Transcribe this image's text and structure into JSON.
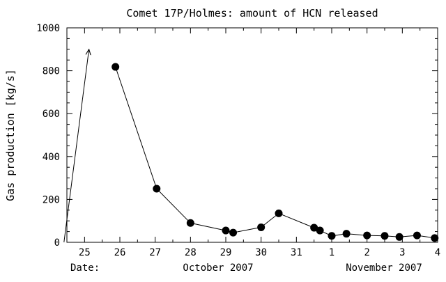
{
  "chart_data": {
    "type": "line",
    "title": "Comet 17P/Holmes: amount of HCN released",
    "ylabel": "Gas production [kg/s]",
    "xlabel": "",
    "ylim": [
      0,
      1000
    ],
    "xlim": [
      "2007-10-24T12:00",
      "2007-11-04T00:00"
    ],
    "grid": false,
    "y_ticks": [
      0,
      200,
      400,
      600,
      800,
      1000
    ],
    "x_ticks": [
      {
        "label": "25",
        "date": "2007-10-25"
      },
      {
        "label": "26",
        "date": "2007-10-26"
      },
      {
        "label": "27",
        "date": "2007-10-27"
      },
      {
        "label": "28",
        "date": "2007-10-28"
      },
      {
        "label": "29",
        "date": "2007-10-29"
      },
      {
        "label": "30",
        "date": "2007-10-30"
      },
      {
        "label": "31",
        "date": "2007-10-31"
      },
      {
        "label": "1",
        "date": "2007-11-01"
      },
      {
        "label": "2",
        "date": "2007-11-02"
      },
      {
        "label": "3",
        "date": "2007-11-03"
      },
      {
        "label": "4",
        "date": "2007-11-04"
      }
    ],
    "date_label": "Date:",
    "month_labels": [
      {
        "text": "October 2007"
      },
      {
        "text": "November 2007"
      }
    ],
    "outburst_arrow": {
      "from": {
        "x": "2007-10-24T10:00",
        "y": 0
      },
      "to": {
        "x": "2007-10-25T03:00",
        "y": 900
      }
    },
    "series": [
      {
        "points": [
          {
            "x": "2007-10-25T21:00",
            "y": 818
          },
          {
            "x": "2007-10-27T01:00",
            "y": 250
          },
          {
            "x": "2007-10-28T00:00",
            "y": 90
          },
          {
            "x": "2007-10-29T00:00",
            "y": 55
          },
          {
            "x": "2007-10-29T05:00",
            "y": 45
          },
          {
            "x": "2007-10-30T00:00",
            "y": 70
          },
          {
            "x": "2007-10-30T12:00",
            "y": 135
          },
          {
            "x": "2007-10-31T12:00",
            "y": 68
          },
          {
            "x": "2007-10-31T16:00",
            "y": 55
          },
          {
            "x": "2007-11-01T00:00",
            "y": 30
          },
          {
            "x": "2007-11-01T10:00",
            "y": 40
          },
          {
            "x": "2007-11-02T00:00",
            "y": 32
          },
          {
            "x": "2007-11-02T12:00",
            "y": 30
          },
          {
            "x": "2007-11-02T22:00",
            "y": 25
          },
          {
            "x": "2007-11-03T10:00",
            "y": 32
          },
          {
            "x": "2007-11-03T22:00",
            "y": 20
          }
        ]
      }
    ]
  }
}
